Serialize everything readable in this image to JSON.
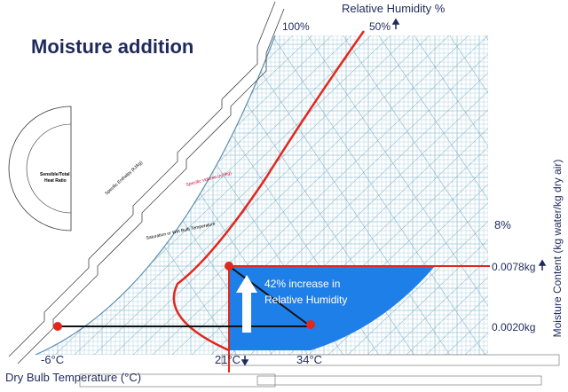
{
  "title": "Moisture addition",
  "relative_humidity_label": "Relative Humidity %",
  "rh_100": "100%",
  "rh_50": "50%",
  "rh_8": "8%",
  "moisture_high": "0.0078kg",
  "moisture_low": "0.0020kg",
  "temp_cold": "-6°C",
  "temp_mid": "21°C",
  "temp_hot": "34°C",
  "x_axis_label": "Dry Bulb Temperature (°C)",
  "y_axis_label": "Moisture Content (kg water/kg dry air)",
  "annotation": [
    "42% increase in",
    "Relative Humidity"
  ],
  "chart_labels": {
    "heat_ratio": [
      "Sensible/Total",
      "Heat Ratio"
    ],
    "enthalpy": "Specific Enthalpy (kJ/kg)",
    "wet_bulb": "Saturation or Wet Bulb Temperature",
    "volume": "Specific Volume (m³/kg)"
  }
}
